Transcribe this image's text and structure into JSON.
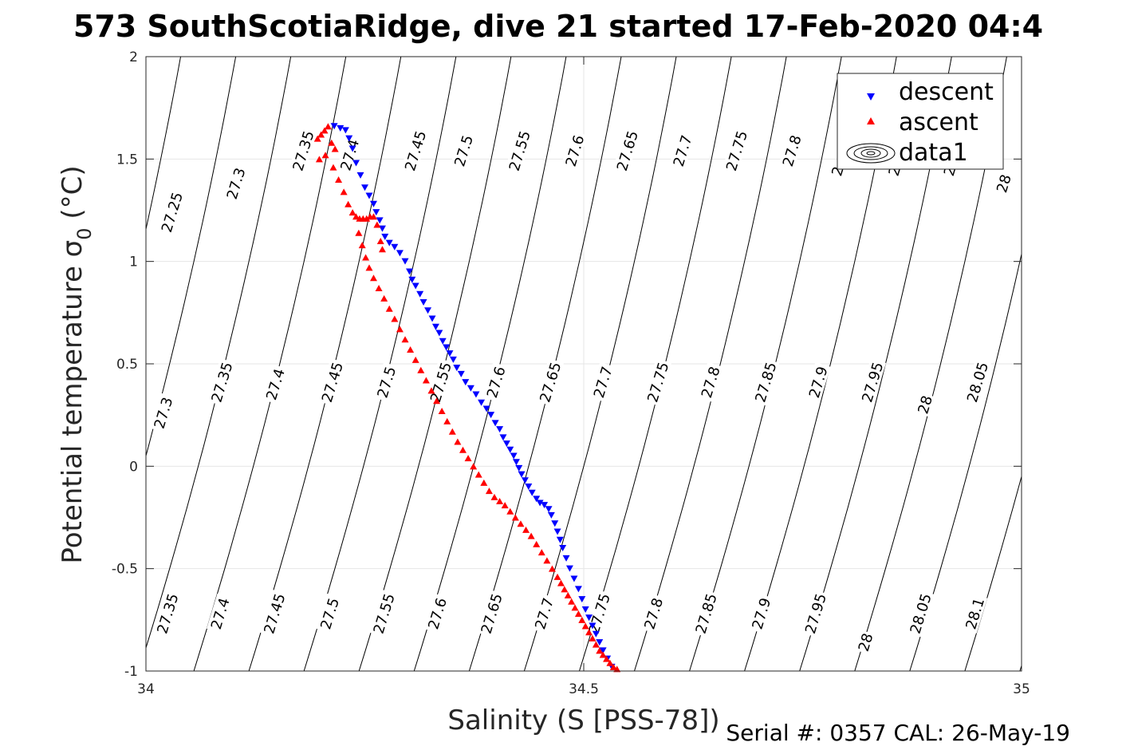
{
  "chart_data": {
    "type": "scatter",
    "title": "573 SouthScotiaRidge, dive 21 started 17-Feb-2020 04:4",
    "xlabel": "Salinity (S [PSS-78])",
    "ylabel_main": "Potential temperature ",
    "ylabel_sigma": "σ",
    "ylabel_sub": "0",
    "ylabel_unit": " (°C)",
    "xlim": [
      34,
      35
    ],
    "ylim": [
      -1,
      2
    ],
    "xticks": [
      34,
      34.5,
      35
    ],
    "xtick_labels": [
      "34",
      "34.5",
      "35"
    ],
    "yticks": [
      -1,
      -0.5,
      0,
      0.5,
      1,
      1.5,
      2
    ],
    "ytick_labels": [
      "-1",
      "-0.5",
      "0",
      "0.5",
      "1",
      "1.5",
      "2"
    ],
    "grid": true,
    "legend_position": "top-right",
    "legend": [
      {
        "name": "descent",
        "marker": "triangle-down",
        "color": "#0000ff"
      },
      {
        "name": "ascent",
        "marker": "triangle-up",
        "color": "#ff0000"
      },
      {
        "name": "data1",
        "marker": "contour",
        "color": "#000000"
      }
    ],
    "contour_values": [
      27.25,
      27.3,
      27.35,
      27.4,
      27.45,
      27.5,
      27.55,
      27.6,
      27.65,
      27.7,
      27.75,
      27.8,
      27.85,
      27.9,
      27.95,
      28,
      28.05,
      28.1
    ],
    "contour_labels": [
      {
        "text": "27.25",
        "s": 34.03,
        "t": 1.24
      },
      {
        "text": "27.3",
        "s": 34.103,
        "t": 1.38
      },
      {
        "text": "27.35",
        "s": 34.18,
        "t": 1.54
      },
      {
        "text": "27.4",
        "s": 34.233,
        "t": 1.52
      },
      {
        "text": "27.45",
        "s": 34.308,
        "t": 1.54
      },
      {
        "text": "27.5",
        "s": 34.363,
        "t": 1.54
      },
      {
        "text": "27.55",
        "s": 34.427,
        "t": 1.54
      },
      {
        "text": "27.6",
        "s": 34.49,
        "t": 1.54
      },
      {
        "text": "27.65",
        "s": 34.55,
        "t": 1.54
      },
      {
        "text": "27.7",
        "s": 34.613,
        "t": 1.54
      },
      {
        "text": "27.75",
        "s": 34.675,
        "t": 1.54
      },
      {
        "text": "27.8",
        "s": 34.738,
        "t": 1.54
      },
      {
        "text": "2",
        "s": 34.79,
        "t": 1.44
      },
      {
        "text": "2",
        "s": 34.855,
        "t": 1.44
      },
      {
        "text": "2",
        "s": 34.918,
        "t": 1.44
      },
      {
        "text": "28",
        "s": 34.98,
        "t": 1.38
      },
      {
        "text": "27.3",
        "s": 34.02,
        "t": 0.26
      },
      {
        "text": "27.35",
        "s": 34.087,
        "t": 0.41
      },
      {
        "text": "27.4",
        "s": 34.148,
        "t": 0.4
      },
      {
        "text": "27.45",
        "s": 34.213,
        "t": 0.41
      },
      {
        "text": "27.5",
        "s": 34.275,
        "t": 0.41
      },
      {
        "text": "27.55",
        "s": 34.337,
        "t": 0.41
      },
      {
        "text": "27.6",
        "s": 34.4,
        "t": 0.41
      },
      {
        "text": "27.65",
        "s": 34.462,
        "t": 0.41
      },
      {
        "text": "27.7",
        "s": 34.522,
        "t": 0.41
      },
      {
        "text": "27.75",
        "s": 34.585,
        "t": 0.41
      },
      {
        "text": "27.8",
        "s": 34.645,
        "t": 0.41
      },
      {
        "text": "27.85",
        "s": 34.708,
        "t": 0.41
      },
      {
        "text": "27.9",
        "s": 34.768,
        "t": 0.41
      },
      {
        "text": "27.95",
        "s": 34.83,
        "t": 0.41
      },
      {
        "text": "28",
        "s": 34.89,
        "t": 0.3
      },
      {
        "text": "28.05",
        "s": 34.95,
        "t": 0.41
      },
      {
        "text": "27.35",
        "s": 34.025,
        "t": -0.72
      },
      {
        "text": "27.4",
        "s": 34.085,
        "t": -0.72
      },
      {
        "text": "27.45",
        "s": 34.147,
        "t": -0.72
      },
      {
        "text": "27.5",
        "s": 34.21,
        "t": -0.72
      },
      {
        "text": "27.55",
        "s": 34.272,
        "t": -0.72
      },
      {
        "text": "27.6",
        "s": 34.333,
        "t": -0.72
      },
      {
        "text": "27.65",
        "s": 34.395,
        "t": -0.72
      },
      {
        "text": "27.7",
        "s": 34.455,
        "t": -0.72
      },
      {
        "text": "27.75",
        "s": 34.518,
        "t": -0.72
      },
      {
        "text": "27.8",
        "s": 34.58,
        "t": -0.72
      },
      {
        "text": "27.85",
        "s": 34.64,
        "t": -0.72
      },
      {
        "text": "27.9",
        "s": 34.703,
        "t": -0.72
      },
      {
        "text": "27.95",
        "s": 34.765,
        "t": -0.72
      },
      {
        "text": "28",
        "s": 34.822,
        "t": -0.86
      },
      {
        "text": "28.05",
        "s": 34.885,
        "t": -0.72
      },
      {
        "text": "28.1",
        "s": 34.947,
        "t": -0.72
      }
    ],
    "series": [
      {
        "name": "descent",
        "marker": "triangle-down",
        "color": "#0000ff",
        "x": [
          34.215,
          34.222,
          34.228,
          34.232,
          34.236,
          34.24,
          34.245,
          34.25,
          34.255,
          34.26,
          34.263,
          34.267,
          34.27,
          34.273,
          34.278,
          34.284,
          34.29,
          34.296,
          34.301,
          34.304,
          34.308,
          34.313,
          34.317,
          34.322,
          34.327,
          34.331,
          34.335,
          34.339,
          34.343,
          34.347,
          34.351,
          34.355,
          34.36,
          34.365,
          34.371,
          34.377,
          34.383,
          34.389,
          34.394,
          34.399,
          34.404,
          34.408,
          34.412,
          34.416,
          34.42,
          34.423,
          34.426,
          34.429,
          34.433,
          34.437,
          34.441,
          34.446,
          34.45,
          34.455,
          34.46,
          34.463,
          34.467,
          34.47,
          34.473,
          34.476,
          34.48,
          34.484,
          34.489,
          34.494,
          34.498,
          34.502,
          34.506,
          34.51,
          34.514,
          34.518,
          34.522,
          34.527,
          34.532
        ],
        "y": [
          1.66,
          1.65,
          1.64,
          1.6,
          1.55,
          1.48,
          1.42,
          1.36,
          1.32,
          1.28,
          1.24,
          1.2,
          1.16,
          1.12,
          1.09,
          1.07,
          1.04,
          1.0,
          0.95,
          0.91,
          0.88,
          0.84,
          0.8,
          0.76,
          0.72,
          0.68,
          0.65,
          0.61,
          0.58,
          0.55,
          0.52,
          0.48,
          0.45,
          0.41,
          0.38,
          0.35,
          0.31,
          0.28,
          0.25,
          0.21,
          0.18,
          0.14,
          0.11,
          0.08,
          0.05,
          0.02,
          -0.01,
          -0.04,
          -0.07,
          -0.1,
          -0.13,
          -0.16,
          -0.18,
          -0.19,
          -0.21,
          -0.24,
          -0.28,
          -0.32,
          -0.36,
          -0.4,
          -0.45,
          -0.5,
          -0.55,
          -0.6,
          -0.65,
          -0.7,
          -0.74,
          -0.78,
          -0.82,
          -0.86,
          -0.9,
          -0.94,
          -0.98
        ]
      },
      {
        "name": "ascent",
        "marker": "triangle-up",
        "color": "#ff0000",
        "x": [
          34.196,
          34.2,
          34.204,
          34.208,
          34.212,
          34.216,
          34.205,
          34.198,
          34.214,
          34.22,
          34.226,
          34.231,
          34.236,
          34.24,
          34.244,
          34.248,
          34.252,
          34.256,
          34.26,
          34.264,
          34.268,
          34.27,
          34.243,
          34.247,
          34.251,
          34.255,
          34.26,
          34.266,
          34.272,
          34.278,
          34.284,
          34.29,
          34.296,
          34.302,
          34.308,
          34.314,
          34.32,
          34.326,
          34.332,
          34.338,
          34.344,
          34.35,
          34.356,
          34.362,
          34.368,
          34.374,
          34.38,
          34.386,
          34.392,
          34.398,
          34.404,
          34.41,
          34.416,
          34.422,
          34.428,
          34.434,
          34.44,
          34.446,
          34.452,
          34.458,
          34.464,
          34.47,
          34.474,
          34.478,
          34.482,
          34.486,
          34.49,
          34.494,
          34.498,
          34.502,
          34.506,
          34.51,
          34.514,
          34.518,
          34.522,
          34.526,
          34.53,
          34.534,
          34.538
        ],
        "y": [
          1.6,
          1.62,
          1.64,
          1.66,
          1.58,
          1.55,
          1.52,
          1.5,
          1.46,
          1.4,
          1.34,
          1.28,
          1.24,
          1.22,
          1.21,
          1.21,
          1.21,
          1.22,
          1.22,
          1.18,
          1.1,
          1.06,
          1.14,
          1.08,
          1.02,
          0.97,
          0.92,
          0.87,
          0.82,
          0.77,
          0.72,
          0.67,
          0.62,
          0.57,
          0.52,
          0.47,
          0.42,
          0.37,
          0.32,
          0.27,
          0.22,
          0.17,
          0.12,
          0.08,
          0.04,
          0.0,
          -0.04,
          -0.08,
          -0.12,
          -0.15,
          -0.17,
          -0.19,
          -0.22,
          -0.25,
          -0.28,
          -0.31,
          -0.34,
          -0.38,
          -0.42,
          -0.46,
          -0.5,
          -0.54,
          -0.57,
          -0.6,
          -0.63,
          -0.66,
          -0.69,
          -0.72,
          -0.75,
          -0.78,
          -0.81,
          -0.84,
          -0.87,
          -0.9,
          -0.92,
          -0.94,
          -0.96,
          -0.98,
          -0.99
        ]
      }
    ]
  },
  "footer": {
    "serial": "Serial #: 0357  CAL: 26-May-19"
  }
}
